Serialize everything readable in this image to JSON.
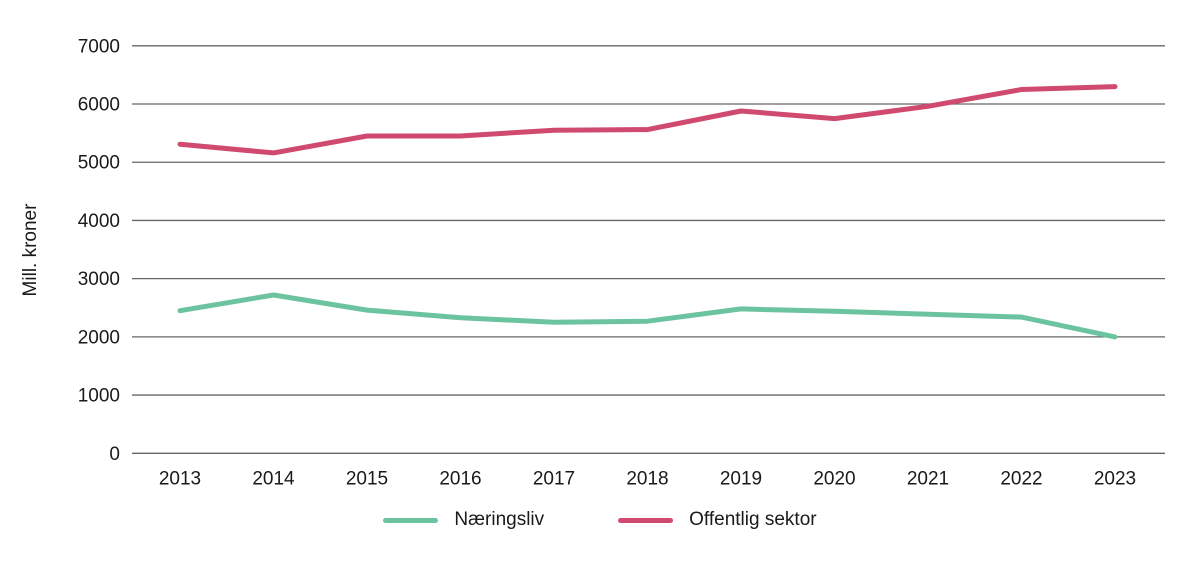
{
  "chart_data": {
    "type": "line",
    "title": "",
    "xlabel": "",
    "ylabel": "Mill. kroner",
    "x": [
      2013,
      2014,
      2015,
      2016,
      2017,
      2018,
      2019,
      2020,
      2021,
      2022,
      2023
    ],
    "series": [
      {
        "name": "Næringsliv",
        "color": "#6cc3a0",
        "values": [
          2450,
          2720,
          2460,
          2330,
          2250,
          2270,
          2480,
          2440,
          2390,
          2340,
          2000
        ]
      },
      {
        "name": "Offentlig sektor",
        "color": "#d04a70",
        "values": [
          5310,
          5160,
          5450,
          5450,
          5550,
          5560,
          5880,
          5750,
          5960,
          6250,
          6300
        ]
      }
    ],
    "ylim": [
      0,
      7000
    ],
    "ytick_step": 1000,
    "yticks": [
      0,
      1000,
      2000,
      3000,
      4000,
      5000,
      6000,
      7000
    ],
    "grid": true,
    "grid_color": "#666666",
    "text_color": "#1a1a1a",
    "legend_position": "bottom"
  }
}
